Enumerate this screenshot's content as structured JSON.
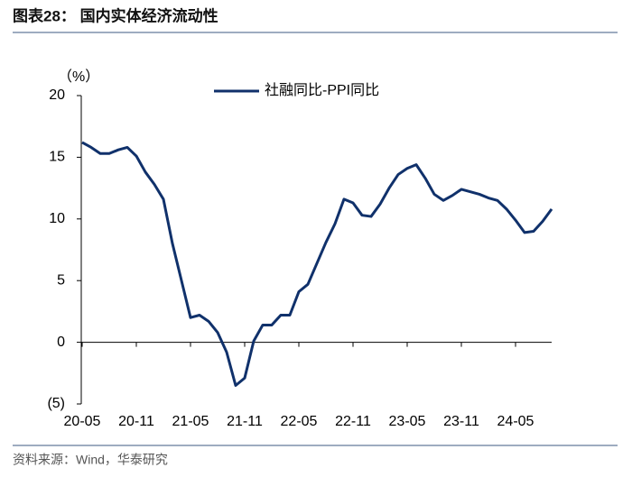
{
  "chart_data": {
    "type": "line",
    "title": "图表28： 国内实体经济流动性",
    "source": "资料来源：Wind，华泰研究",
    "y_label": "（%）",
    "categories": [
      "20-05",
      null,
      null,
      null,
      null,
      null,
      "20-11",
      null,
      null,
      null,
      null,
      null,
      "21-05",
      null,
      null,
      null,
      null,
      null,
      "21-11",
      null,
      null,
      null,
      null,
      null,
      "22-05",
      null,
      null,
      null,
      null,
      null,
      "22-11",
      null,
      null,
      null,
      null,
      null,
      "23-05",
      null,
      null,
      null,
      null,
      null,
      "23-11",
      null,
      null,
      null,
      null,
      null,
      "24-05",
      null,
      null,
      null,
      null
    ],
    "series": [
      {
        "name": "社融同比-PPI同比",
        "color": "#10316b",
        "values": [
          16.2,
          15.8,
          15.3,
          15.3,
          15.6,
          15.8,
          15.1,
          13.8,
          12.8,
          11.6,
          8.0,
          5.0,
          2.0,
          2.2,
          1.7,
          0.8,
          -0.8,
          -3.5,
          -2.9,
          0.1,
          1.4,
          1.4,
          2.2,
          2.2,
          4.1,
          4.7,
          6.4,
          8.1,
          9.6,
          11.6,
          11.3,
          10.3,
          10.2,
          11.2,
          12.5,
          13.6,
          14.1,
          14.4,
          13.3,
          12.0,
          11.5,
          11.9,
          12.4,
          12.2,
          12.0,
          11.7,
          11.5,
          10.8,
          9.9,
          8.9,
          9.0,
          9.8,
          10.8
        ]
      }
    ],
    "ylim": [
      -5,
      20
    ],
    "yticks": [
      {
        "value": -5,
        "label": "(5)"
      },
      0,
      5,
      10,
      15,
      20
    ],
    "legend": "top",
    "grid": false
  }
}
